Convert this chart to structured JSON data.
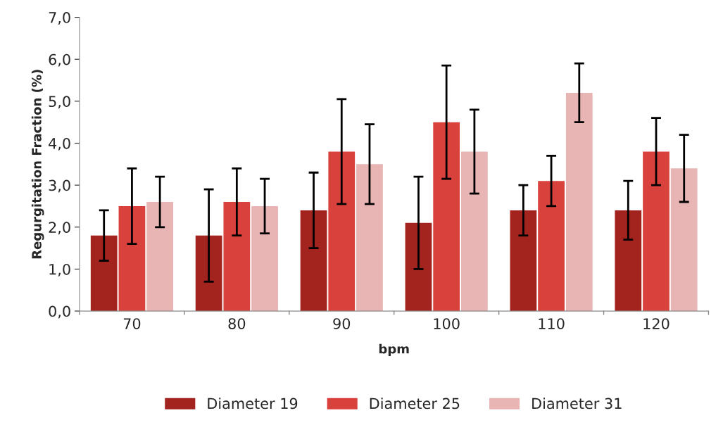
{
  "chart_data": {
    "type": "bar",
    "xlabel": "bpm",
    "ylabel": "Regurgitation Fraction (%)",
    "categories": [
      "70",
      "80",
      "90",
      "100",
      "110",
      "120"
    ],
    "series": [
      {
        "name": "Diameter 19",
        "color": "#a3231f",
        "values": [
          1.8,
          1.8,
          2.4,
          2.1,
          2.4,
          2.4
        ],
        "errors": [
          0.6,
          1.1,
          0.9,
          1.1,
          0.6,
          0.7
        ]
      },
      {
        "name": "Diameter 25",
        "color": "#d9413c",
        "values": [
          2.5,
          2.6,
          3.8,
          4.5,
          3.1,
          3.8
        ],
        "errors": [
          0.9,
          0.8,
          1.25,
          1.35,
          0.6,
          0.8
        ]
      },
      {
        "name": "Diameter 31",
        "color": "#e8b4b4",
        "values": [
          2.6,
          2.5,
          3.5,
          3.8,
          5.2,
          3.4
        ],
        "errors": [
          0.6,
          0.65,
          0.95,
          1.0,
          0.7,
          0.8
        ]
      }
    ],
    "ylim": [
      0,
      7
    ],
    "yticks": [
      {
        "value": 0,
        "label": "0,0"
      },
      {
        "value": 1,
        "label": "1,0"
      },
      {
        "value": 2,
        "label": "2,0"
      },
      {
        "value": 3,
        "label": "3,0"
      },
      {
        "value": 4,
        "label": "4,0"
      },
      {
        "value": 5,
        "label": "5,0"
      },
      {
        "value": 6,
        "label": "6,0"
      },
      {
        "value": 7,
        "label": "7,0"
      }
    ],
    "grid": false,
    "legend": "bottom"
  }
}
